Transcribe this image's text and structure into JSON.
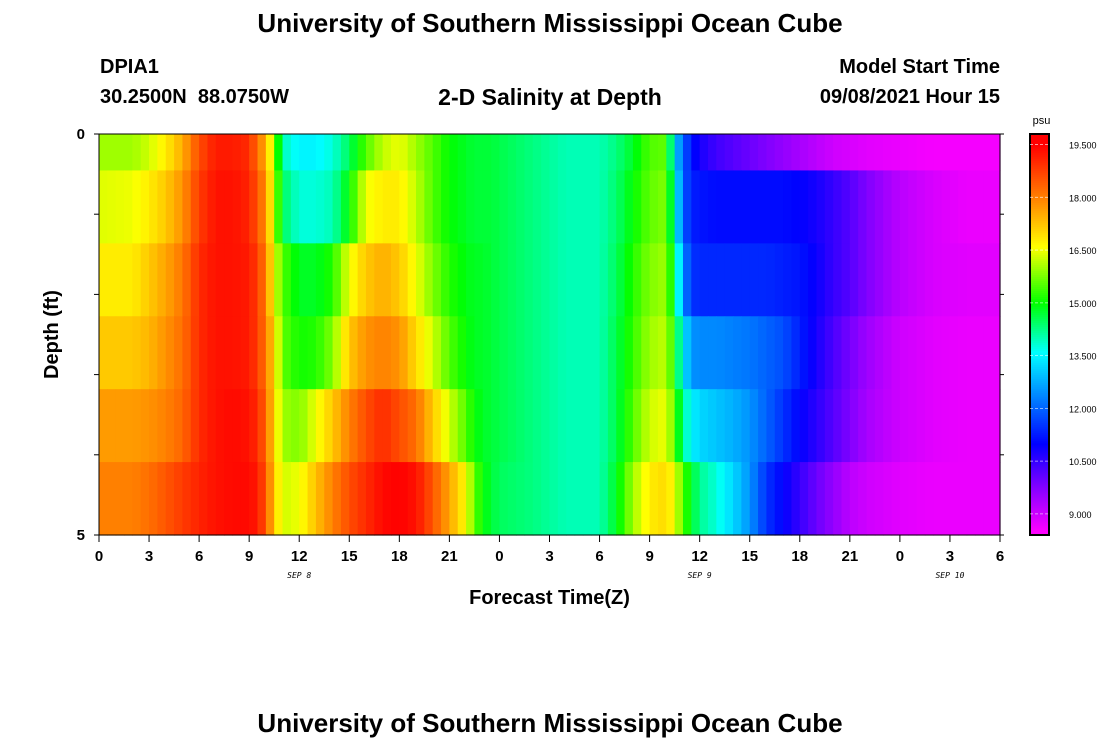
{
  "header": {
    "title": "University of Southern Mississippi Ocean Cube",
    "station_id": "DPIA1",
    "station_coords": "30.2500N  88.0750W",
    "chart_title": "2-D Salinity at Depth",
    "model_start_label": "Model Start Time",
    "model_start_value": "09/08/2021 Hour 15"
  },
  "footer": {
    "title": "University of Southern Mississippi Ocean Cube"
  },
  "chart_data": {
    "type": "heatmap",
    "title": "2-D Salinity at Depth",
    "xlabel": "Forecast Time(Z)",
    "ylabel": "Depth (ft)",
    "x_tick_labels": [
      "0",
      "3",
      "6",
      "9",
      "12",
      "15",
      "18",
      "21",
      "0",
      "3",
      "6",
      "9",
      "12",
      "15",
      "18",
      "21",
      "0",
      "3",
      "6"
    ],
    "x_hours": [
      0,
      3,
      6,
      9,
      12,
      15,
      18,
      21,
      24,
      27,
      30,
      33,
      36,
      39,
      42,
      45,
      48,
      51,
      54
    ],
    "date_labels": [
      {
        "text": "SEP 8",
        "hour": 12
      },
      {
        "text": "SEP 9",
        "hour": 36
      },
      {
        "text": "SEP 10",
        "hour": 51
      }
    ],
    "y_tick_labels": [
      "0",
      "5"
    ],
    "ylim": [
      0,
      5
    ],
    "depth_levels_ft": [
      0,
      1,
      2,
      3,
      4,
      5
    ],
    "colorbar": {
      "unit": "psu",
      "ticks": [
        "19.500",
        "18.000",
        "16.500",
        "15.000",
        "13.500",
        "12.000",
        "10.500",
        "9.000"
      ],
      "tick_values": [
        19.5,
        18.0,
        16.5,
        15.0,
        13.5,
        12.0,
        10.5,
        9.0
      ],
      "range": [
        8.4,
        19.8
      ]
    },
    "colors": {
      "magenta": "#ff00ff",
      "violet": "#8000ff",
      "blue": "#0000ff",
      "cyan": "#00ffff",
      "green": "#00ff00",
      "yellow": "#ffff00",
      "orange": "#ff8000",
      "red": "#ff0000"
    },
    "hours": [
      0,
      2,
      3,
      4,
      5,
      6,
      7,
      8,
      9,
      9.5,
      10,
      10.5,
      11,
      12,
      13,
      14,
      15,
      16,
      17,
      18,
      19,
      20,
      21,
      22,
      22.5,
      23,
      23.5,
      24,
      26,
      28,
      30,
      31,
      32,
      33,
      34,
      34.5,
      35,
      35.5,
      36,
      37,
      38,
      39,
      40,
      41,
      42,
      43,
      44,
      45,
      46,
      48,
      50,
      52,
      54
    ],
    "rows": [
      [
        16.0,
        16.0,
        16.3,
        16.8,
        17.5,
        18.6,
        19.2,
        19.2,
        19.0,
        18.2,
        17.5,
        16.0,
        14.0,
        13.5,
        13.5,
        13.8,
        14.5,
        15.5,
        16.2,
        16.5,
        16.0,
        15.5,
        15.0,
        14.8,
        14.7,
        14.7,
        14.7,
        14.6,
        14.3,
        14.0,
        14.0,
        14.3,
        14.8,
        15.5,
        15.6,
        13.2,
        12.0,
        11.2,
        10.8,
        10.4,
        10.2,
        10.0,
        9.8,
        9.6,
        9.4,
        9.2,
        9.0,
        8.9,
        8.8,
        8.7,
        8.6,
        8.6,
        8.6
      ],
      [
        16.4,
        16.5,
        16.8,
        17.2,
        17.8,
        18.8,
        19.3,
        19.3,
        19.1,
        18.5,
        17.8,
        16.2,
        14.5,
        13.8,
        13.8,
        14.0,
        15.0,
        16.5,
        16.8,
        16.8,
        16.2,
        15.5,
        15.0,
        14.8,
        14.7,
        14.7,
        14.7,
        14.6,
        14.3,
        14.0,
        14.0,
        14.4,
        15.0,
        15.6,
        15.8,
        13.8,
        12.0,
        11.3,
        11.2,
        11.1,
        11.1,
        11.1,
        11.1,
        11.1,
        11.0,
        10.8,
        10.5,
        10.2,
        9.8,
        9.2,
        8.9,
        8.7,
        8.7
      ],
      [
        16.8,
        16.8,
        17.2,
        17.6,
        18.1,
        19.0,
        19.3,
        19.3,
        19.2,
        18.8,
        18.0,
        16.5,
        15.5,
        14.8,
        14.8,
        15.2,
        16.5,
        17.2,
        17.5,
        17.2,
        16.5,
        15.8,
        15.2,
        14.9,
        14.8,
        14.8,
        14.7,
        14.6,
        14.3,
        14.0,
        14.0,
        14.5,
        15.2,
        15.8,
        16.0,
        14.5,
        12.5,
        11.5,
        11.4,
        11.4,
        11.4,
        11.4,
        11.4,
        11.3,
        11.2,
        10.9,
        10.5,
        10.2,
        9.8,
        9.2,
        8.9,
        8.8,
        8.8
      ],
      [
        17.2,
        17.2,
        17.4,
        17.8,
        18.2,
        19.0,
        19.3,
        19.3,
        19.2,
        18.8,
        18.1,
        17.0,
        15.6,
        15.1,
        15.2,
        15.8,
        17.2,
        17.8,
        18.0,
        17.8,
        17.0,
        16.3,
        15.5,
        15.0,
        14.8,
        14.8,
        14.7,
        14.6,
        14.3,
        14.0,
        14.0,
        14.6,
        15.3,
        16.0,
        16.2,
        15.0,
        13.5,
        12.5,
        12.4,
        12.4,
        12.3,
        12.2,
        12.0,
        11.8,
        11.3,
        10.8,
        10.3,
        9.9,
        9.5,
        9.0,
        8.8,
        8.7,
        8.7
      ],
      [
        17.7,
        17.7,
        17.8,
        18.0,
        18.3,
        19.0,
        19.3,
        19.4,
        19.3,
        19.0,
        18.3,
        17.0,
        16.0,
        15.8,
        16.5,
        17.2,
        18.0,
        18.6,
        19.0,
        18.6,
        18.2,
        17.2,
        16.3,
        15.5,
        15.0,
        14.8,
        14.7,
        14.6,
        14.3,
        14.0,
        14.0,
        14.6,
        15.5,
        16.3,
        16.5,
        15.5,
        14.2,
        13.5,
        13.2,
        13.0,
        12.8,
        12.5,
        12.0,
        11.5,
        11.0,
        10.6,
        10.2,
        9.8,
        9.4,
        9.0,
        8.8,
        8.7,
        8.7
      ],
      [
        18.0,
        18.0,
        18.2,
        18.5,
        18.8,
        19.1,
        19.3,
        19.4,
        19.4,
        19.2,
        18.5,
        17.2,
        16.3,
        16.5,
        17.3,
        18.0,
        18.6,
        19.0,
        19.4,
        19.5,
        19.3,
        18.5,
        17.6,
        16.6,
        15.6,
        15.0,
        14.7,
        14.5,
        14.3,
        14.0,
        14.0,
        14.8,
        16.0,
        16.8,
        17.0,
        16.5,
        15.5,
        14.8,
        14.2,
        13.8,
        13.2,
        12.5,
        11.5,
        11.0,
        10.5,
        10.0,
        9.6,
        9.2,
        9.0,
        8.8,
        8.7,
        8.7,
        8.7
      ]
    ]
  }
}
